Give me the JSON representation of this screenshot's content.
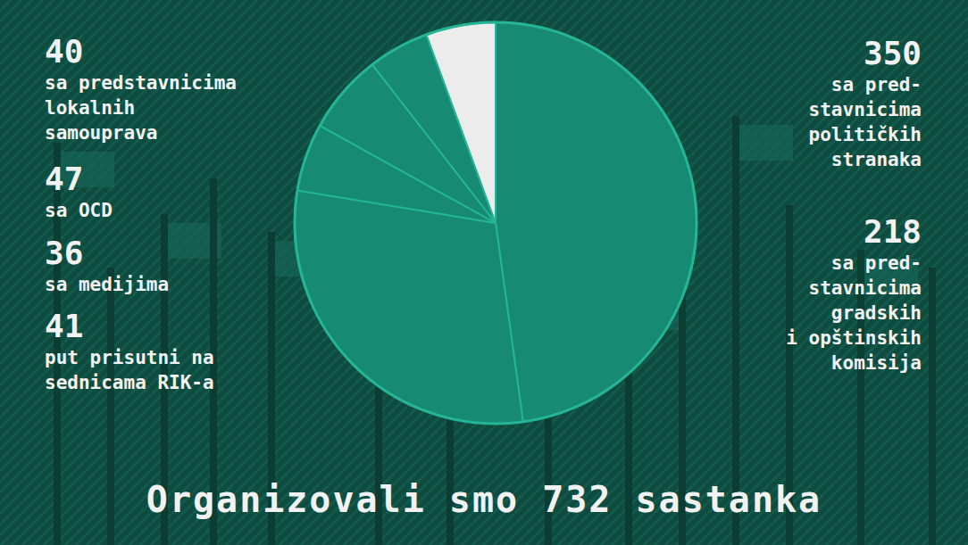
{
  "chart_data": {
    "type": "pie",
    "title": "Organizovali smo 732 sastanka",
    "categories": [
      "sa pred-\nstavnicima\npolitičkih\nstranaka",
      "sa pred-\nstavnicima\ngradskih\ni opštinskih\nkomisija",
      "sa predstavnicima\nlokalnih\nsamouprava",
      "sa OCD",
      "sa medijima",
      "put prisutni na\nsednicama RIK-a"
    ],
    "values": [
      350,
      218,
      40,
      47,
      36,
      41
    ],
    "colors": [
      "#178a73",
      "#178a73",
      "#178a73",
      "#178a73",
      "#178a73",
      "#ececec"
    ],
    "data_labels": true
  }
}
